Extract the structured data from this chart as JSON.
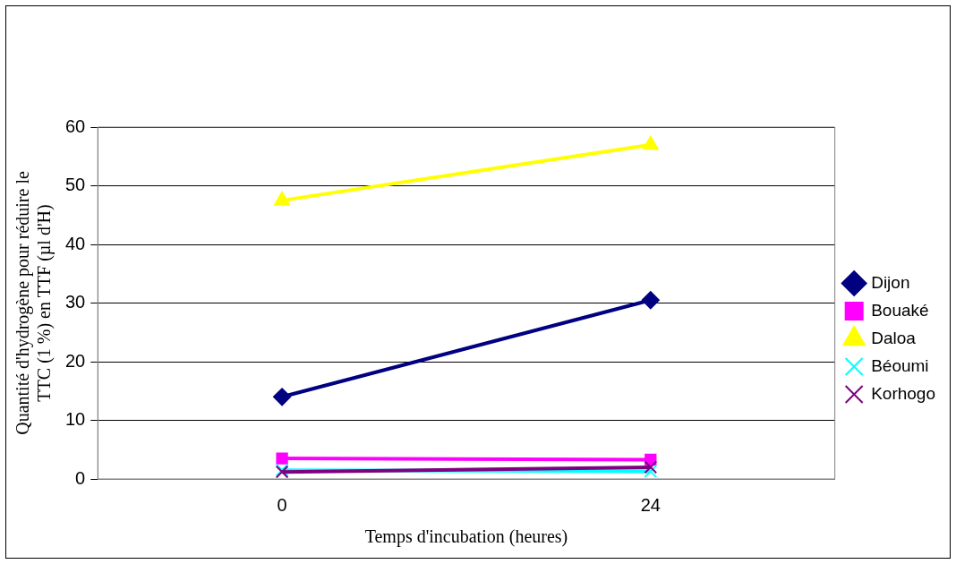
{
  "chart_data": {
    "type": "line",
    "xlabel": "Temps d'incubation (heures)",
    "ylabel": "Quantité d'hydrogène pour réduire le TTC (1 %) en TTF (µl d'H)",
    "categories": [
      "0",
      "24"
    ],
    "series": [
      {
        "name": "Dijon",
        "color": "#000080",
        "marker": "diamond",
        "values": [
          14,
          30.5
        ]
      },
      {
        "name": "Bouaké",
        "color": "#ff00ff",
        "marker": "square",
        "values": [
          3.5,
          3.3
        ]
      },
      {
        "name": "Daloa",
        "color": "#ffff00",
        "marker": "triangle",
        "values": [
          47.5,
          57
        ]
      },
      {
        "name": "Béoumi",
        "color": "#00ffff",
        "marker": "cross",
        "values": [
          1.5,
          1.3
        ]
      },
      {
        "name": "Korhogo",
        "color": "#800080",
        "marker": "cross",
        "values": [
          1.2,
          2
        ]
      }
    ],
    "ylim": [
      0,
      60
    ],
    "yticks": [
      0,
      10,
      20,
      30,
      40,
      50,
      60
    ],
    "grid": "y",
    "legend": "right",
    "line_style": "solid"
  }
}
